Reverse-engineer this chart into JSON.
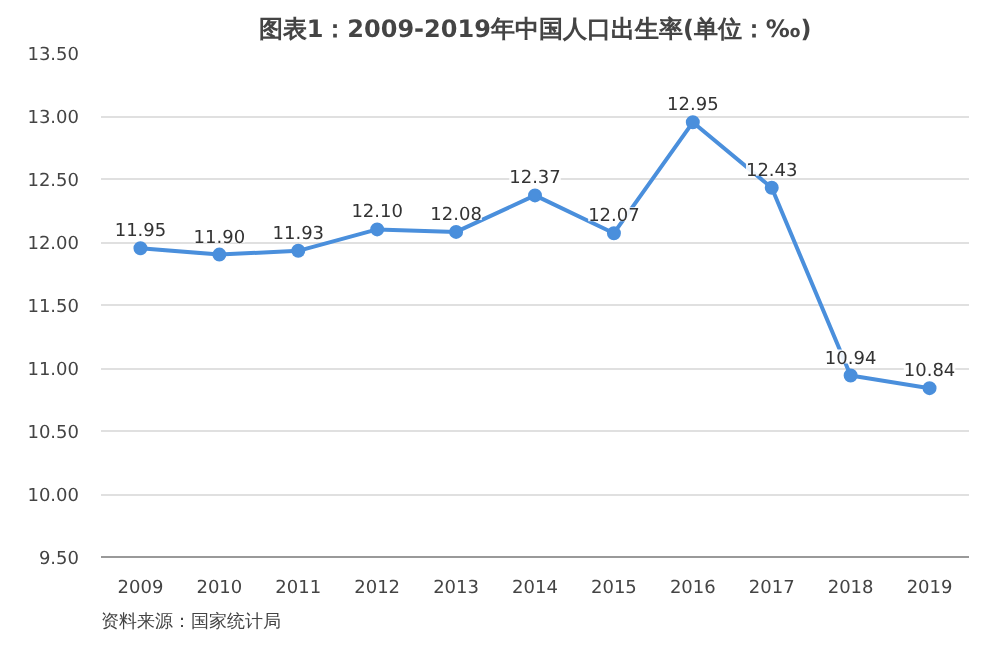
{
  "chart_data": {
    "type": "line",
    "title": "图表1：2009-2019年中国人口出生率(单位：‰)",
    "categories": [
      "2009",
      "2010",
      "2011",
      "2012",
      "2013",
      "2014",
      "2015",
      "2016",
      "2017",
      "2018",
      "2019"
    ],
    "series": [
      {
        "color": "#4a8fdc",
        "values": [
          11.95,
          11.9,
          11.93,
          12.1,
          12.08,
          12.37,
          12.07,
          12.95,
          12.43,
          10.94,
          10.84
        ],
        "value_labels": [
          "11.95",
          "11.90",
          "11.93",
          "12.10",
          "12.08",
          "12.37",
          "12.07",
          "12.95",
          "12.43",
          "10.94",
          "10.84"
        ]
      }
    ],
    "ylim": [
      9.5,
      13.5
    ],
    "yticks": [
      {
        "value": 9.5,
        "label": "9.50"
      },
      {
        "value": 10.0,
        "label": "10.00"
      },
      {
        "value": 10.5,
        "label": "10.50"
      },
      {
        "value": 11.0,
        "label": "11.00"
      },
      {
        "value": 11.5,
        "label": "11.50"
      },
      {
        "value": 12.0,
        "label": "12.00"
      },
      {
        "value": 12.5,
        "label": "12.50"
      },
      {
        "value": 13.0,
        "label": "13.00"
      },
      {
        "value": 13.5,
        "label": "13.50"
      }
    ],
    "grid": "y",
    "marker": "circle",
    "line_style": "solid",
    "annotations": [
      "资料来源：国家统计局"
    ]
  }
}
